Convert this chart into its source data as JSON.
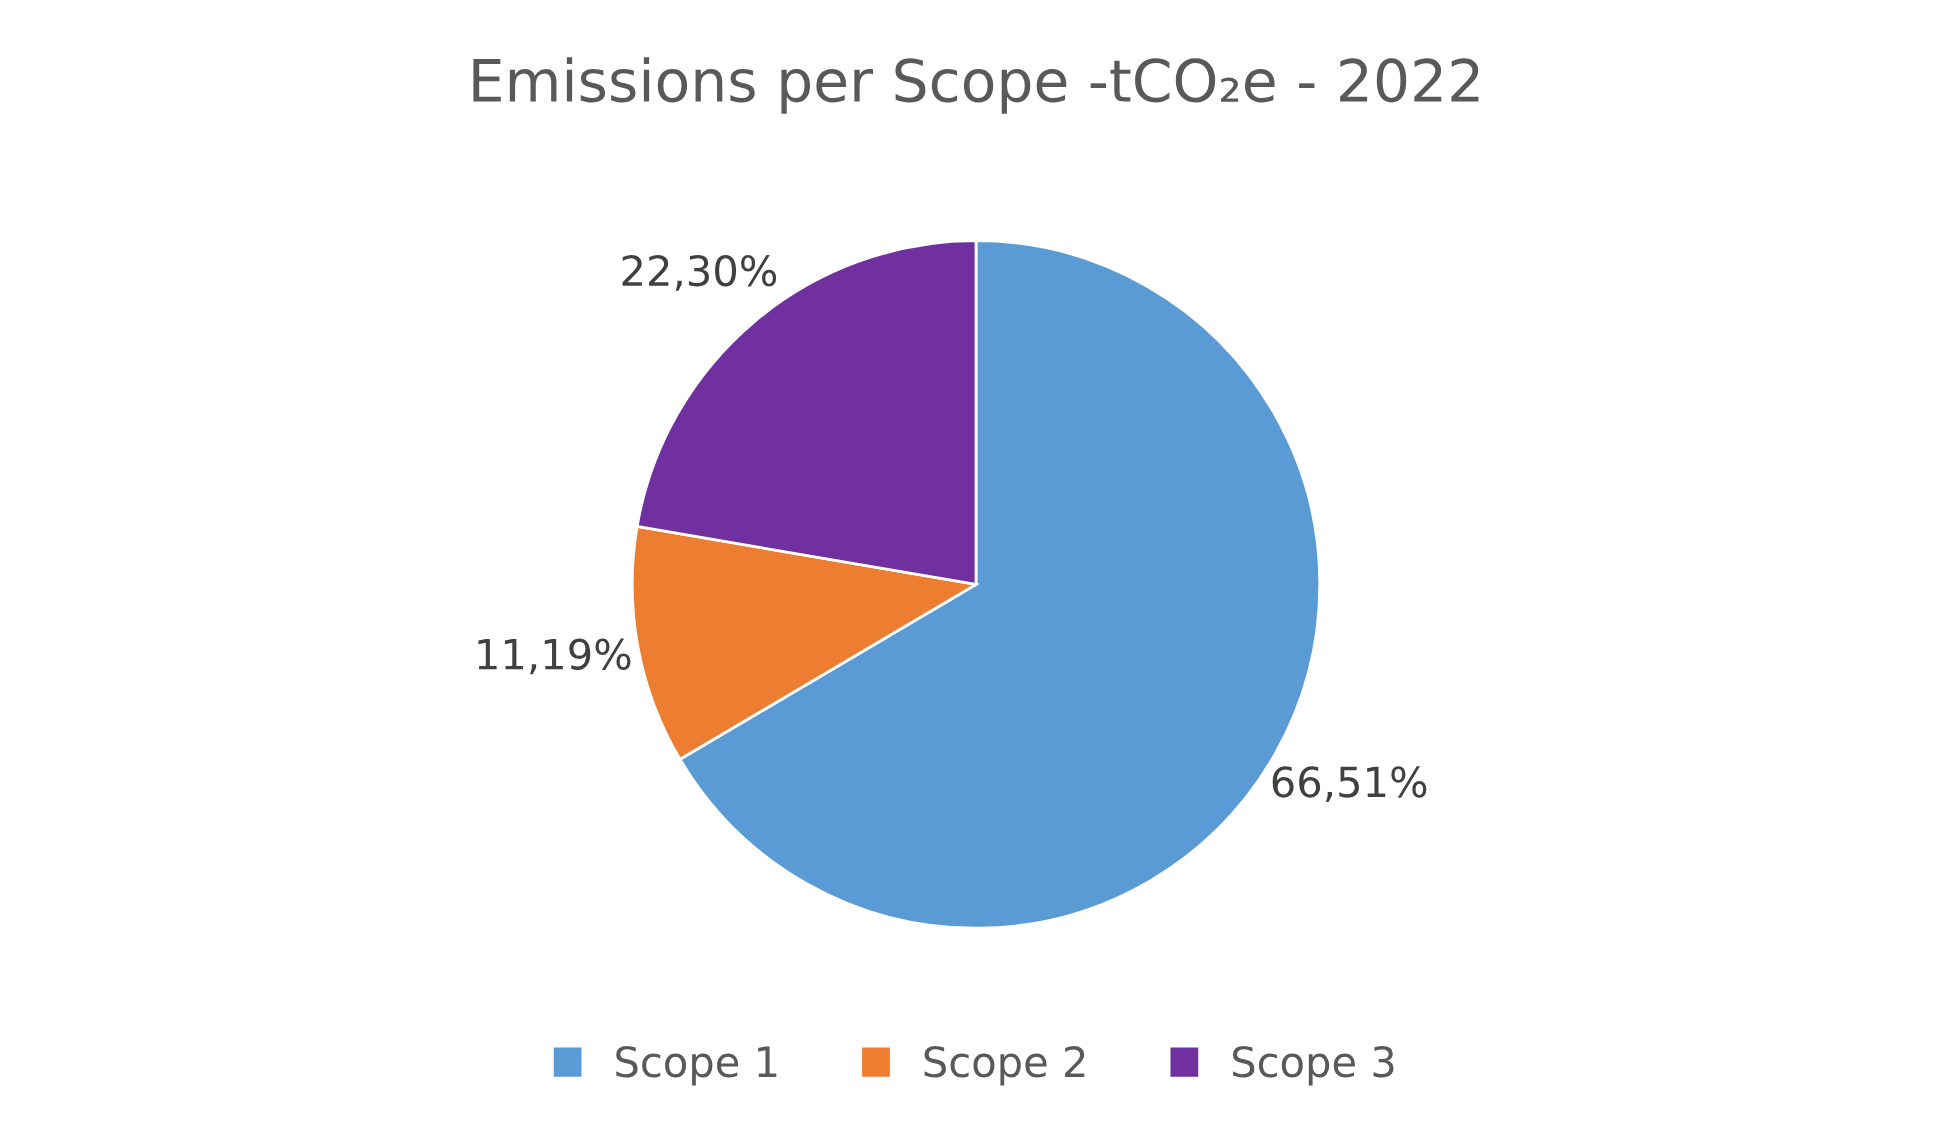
{
  "chart_data": {
    "type": "pie",
    "title": "Emissions per Scope -tCO₂e - 2022",
    "categories": [
      "Scope 1",
      "Scope 2",
      "Scope 3"
    ],
    "values": [
      66.51,
      11.19,
      22.3
    ],
    "colors": [
      "#5b9bd5",
      "#ed7d31",
      "#7030a0"
    ],
    "value_labels": [
      "66,51%",
      "11,19%",
      "22,30%"
    ],
    "legend": "bottom"
  }
}
